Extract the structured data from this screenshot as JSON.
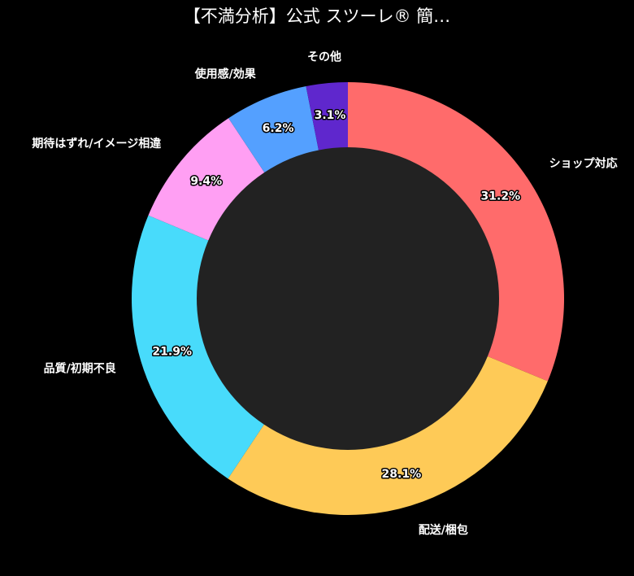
{
  "chart_data": {
    "type": "pie",
    "style": "donut",
    "title": "【不満分析】公式 スツーレ® 簡…",
    "start_angle": "12 o'clock",
    "direction": "clockwise",
    "slices": [
      {
        "label": "ショップ対応",
        "value": 31.2,
        "pct_label": "31.2%",
        "color": "#ff6b6b"
      },
      {
        "label": "配送/梱包",
        "value": 28.1,
        "pct_label": "28.1%",
        "color": "#feca57"
      },
      {
        "label": "品質/初期不良",
        "value": 21.9,
        "pct_label": "21.9%",
        "color": "#48dbfb"
      },
      {
        "label": "期待はずれ/イメージ相違",
        "value": 9.4,
        "pct_label": "9.4%",
        "color": "#ff9ff3"
      },
      {
        "label": "使用感/効果",
        "value": 6.2,
        "pct_label": "6.2%",
        "color": "#54a0ff"
      },
      {
        "label": "その他",
        "value": 3.1,
        "pct_label": "3.1%",
        "color": "#5f27cd"
      }
    ],
    "center_color": "#222222",
    "background": "#000000"
  }
}
